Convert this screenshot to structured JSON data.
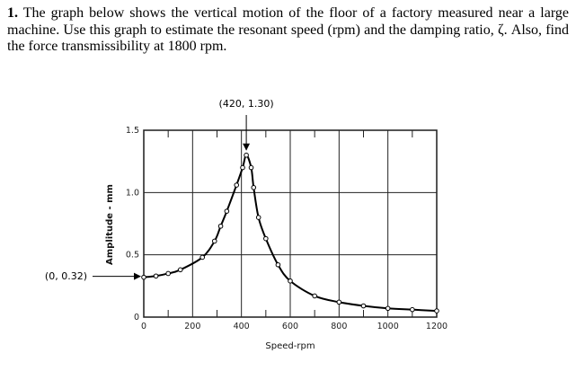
{
  "problem": {
    "number": "1.",
    "text": "The graph below shows the vertical motion of the floor of a factory measured near a large machine.  Use this graph to estimate the resonant speed (rpm) and the damping ratio, ζ.  Also, find the force transmissibility at 1800 rpm."
  },
  "chart_data": {
    "type": "line",
    "title": "",
    "xlabel": "Speed-rpm",
    "ylabel": "Amplitude - mm",
    "xlim": [
      0,
      1200
    ],
    "ylim": [
      0,
      1.5
    ],
    "xticks": [
      "0",
      "200",
      "400",
      "600",
      "800",
      "1000",
      "1200"
    ],
    "yticks": [
      "0",
      "0.5",
      "1.0",
      "1.5"
    ],
    "grid": true,
    "markers": "open circles",
    "x": [
      0,
      50,
      100,
      150,
      240,
      290,
      315,
      340,
      380,
      405,
      420,
      440,
      450,
      470,
      500,
      550,
      600,
      700,
      800,
      900,
      1000,
      1100,
      1200
    ],
    "y": [
      0.32,
      0.33,
      0.35,
      0.38,
      0.48,
      0.61,
      0.73,
      0.85,
      1.06,
      1.2,
      1.3,
      1.2,
      1.04,
      0.8,
      0.63,
      0.42,
      0.29,
      0.17,
      0.12,
      0.09,
      0.07,
      0.06,
      0.05
    ],
    "annotations": [
      {
        "text": "(420, 1.30)",
        "x": 420,
        "y": 1.3
      },
      {
        "text": "(0, 0.32)",
        "x": 0,
        "y": 0.32
      }
    ]
  }
}
